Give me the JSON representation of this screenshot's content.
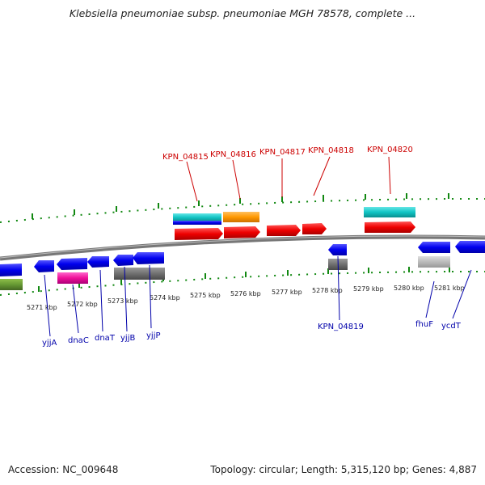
{
  "title": "Klebsiella pneumoniae subsp. pneumoniae MGH 78578, complete ...",
  "footer": {
    "accession": "Accession: NC_009648",
    "summary": "Topology: circular; Length: 5,315,120 bp; Genes: 4,887"
  },
  "colors": {
    "top_label": "#cc0000",
    "bottom_label": "#0000aa",
    "tick": "#118811",
    "backbone": "#777777"
  },
  "kbp_labels": [
    "5271 kbp",
    "5272 kbp",
    "5273 kbp",
    "5274 kbp",
    "5275 kbp",
    "5276 kbp",
    "5277 kbp",
    "5278 kbp",
    "5279 kbp",
    "5280 kbp",
    "5281 kbp"
  ],
  "top_gene_labels": [
    "KPN_04815",
    "KPN_04816",
    "KPN_04817",
    "KPN_04818",
    "KPN_04820"
  ],
  "bottom_gene_labels": [
    "yjjA",
    "dnaC",
    "dnaT",
    "yjjB",
    "yjjP",
    "KPN_04819",
    "fhuF",
    "ycdT"
  ]
}
